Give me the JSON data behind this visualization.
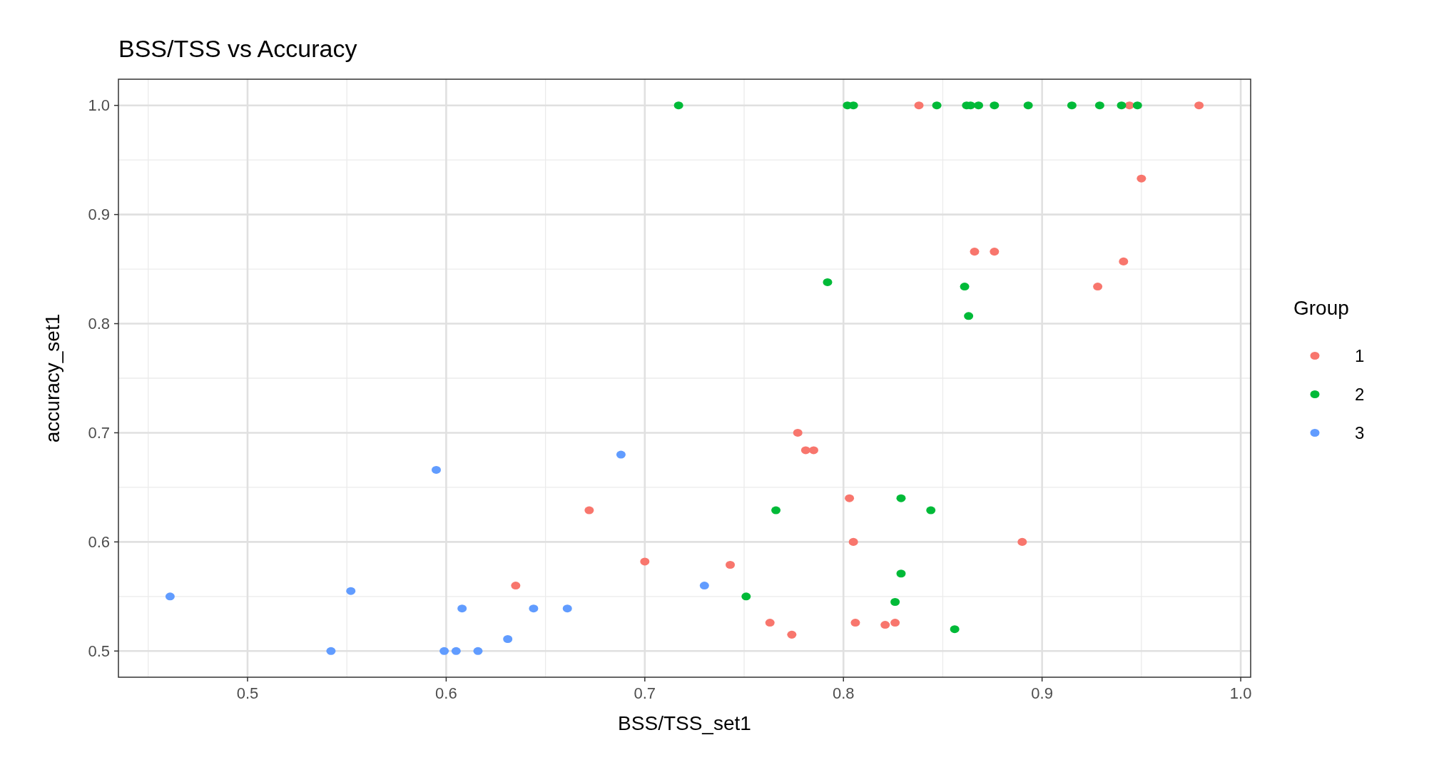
{
  "chart_data": {
    "type": "scatter",
    "title": "BSS/TSS vs Accuracy",
    "xlabel": "BSS/TSS_set1",
    "ylabel": "accuracy_set1",
    "legend_title": "Group",
    "xlim": [
      0.435,
      1.005
    ],
    "ylim": [
      0.476,
      1.024
    ],
    "xticks": [
      0.5,
      0.6,
      0.7,
      0.8,
      0.9,
      {
        "value": 1.0,
        "label": "1.0"
      }
    ],
    "yticks": [
      {
        "value": 0.5,
        "label": "0.5"
      },
      0.6,
      0.7,
      0.8,
      0.9,
      {
        "value": 1.0,
        "label": "1.0"
      }
    ],
    "grid": true,
    "legend": "right",
    "marker": "circle",
    "series": [
      {
        "name": "1",
        "color": "#f8766d",
        "x": [
          0.838,
          0.944,
          0.979,
          0.95,
          0.866,
          0.876,
          0.941,
          0.928,
          0.777,
          0.781,
          0.785,
          0.672,
          0.803,
          0.805,
          0.89,
          0.7,
          0.743,
          0.635,
          0.763,
          0.774,
          0.806,
          0.821,
          0.826
        ],
        "values": [
          1.0,
          1.0,
          1.0,
          0.933,
          0.866,
          0.866,
          0.857,
          0.834,
          0.7,
          0.684,
          0.684,
          0.629,
          0.64,
          0.6,
          0.6,
          0.582,
          0.579,
          0.56,
          0.526,
          0.515,
          0.526,
          0.524,
          0.526
        ]
      },
      {
        "name": "2",
        "color": "#00ba38",
        "x": [
          0.717,
          0.802,
          0.805,
          0.847,
          0.862,
          0.864,
          0.868,
          0.876,
          0.893,
          0.915,
          0.929,
          0.94,
          0.948,
          0.792,
          0.861,
          0.863,
          0.766,
          0.829,
          0.844,
          0.829,
          0.751,
          0.826,
          0.856
        ],
        "values": [
          1.0,
          1.0,
          1.0,
          1.0,
          1.0,
          1.0,
          1.0,
          1.0,
          1.0,
          1.0,
          1.0,
          1.0,
          1.0,
          0.838,
          0.834,
          0.807,
          0.629,
          0.64,
          0.629,
          0.571,
          0.55,
          0.545,
          0.52
        ]
      },
      {
        "name": "3",
        "color": "#619cff",
        "x": [
          0.461,
          0.595,
          0.552,
          0.542,
          0.599,
          0.605,
          0.608,
          0.616,
          0.631,
          0.644,
          0.661,
          0.688,
          0.73
        ],
        "values": [
          0.55,
          0.666,
          0.555,
          0.5,
          0.5,
          0.5,
          0.539,
          0.5,
          0.511,
          0.539,
          0.539,
          0.68,
          0.56
        ]
      }
    ]
  }
}
